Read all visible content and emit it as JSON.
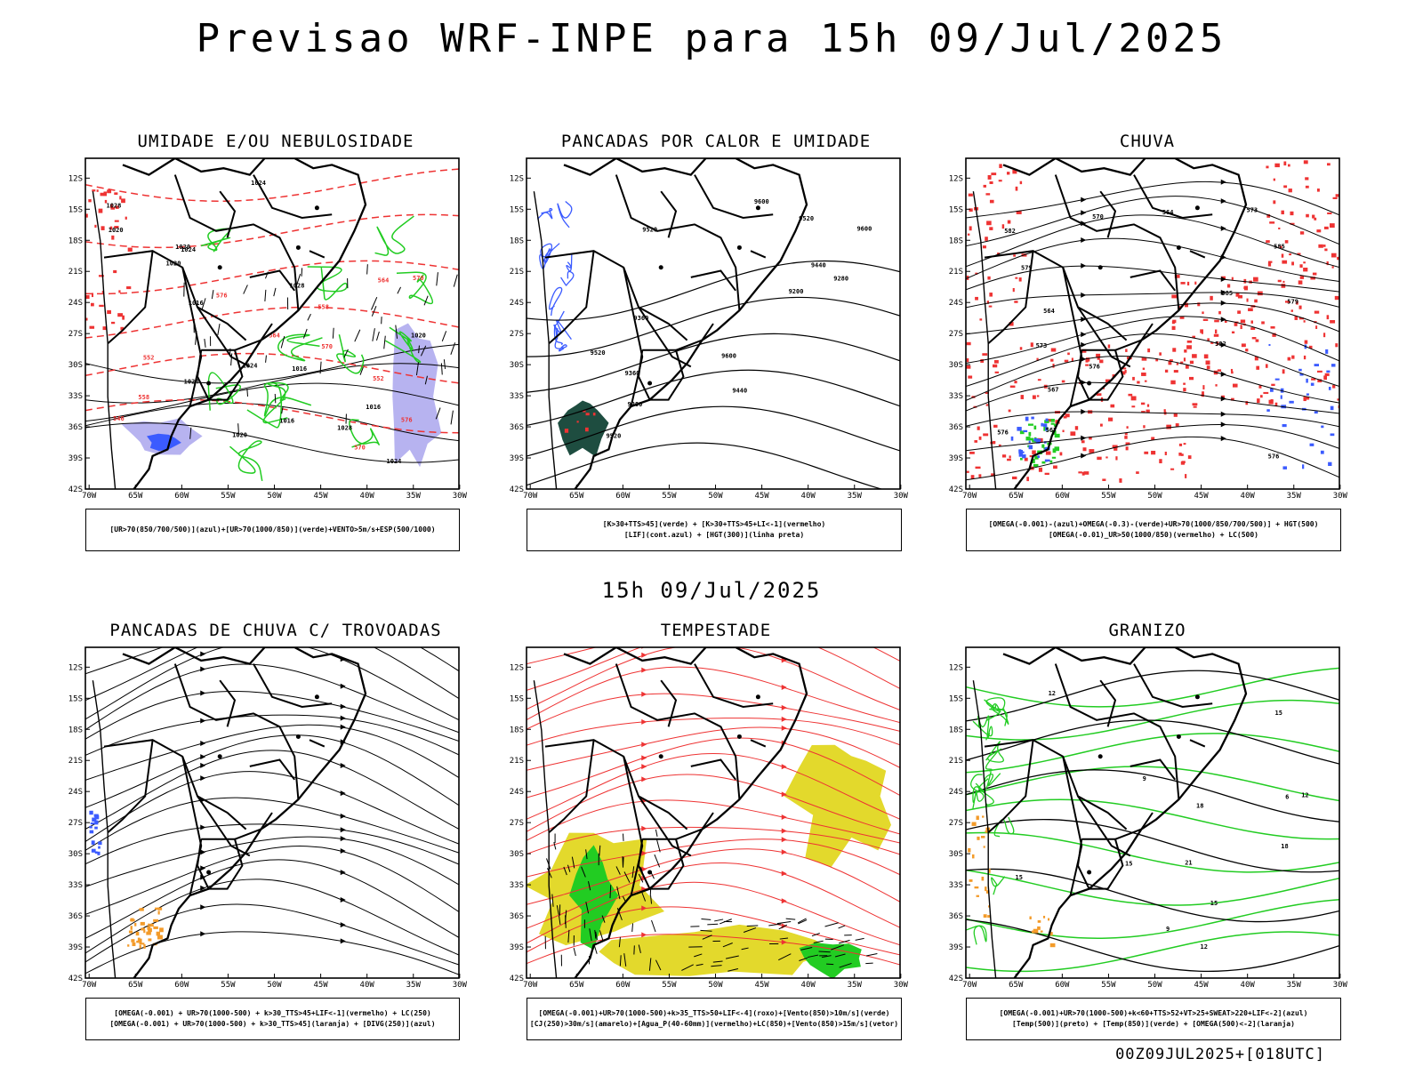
{
  "title": "Previsao WRF-INPE  para 15h 09/Jul/2025",
  "subtitle": "15h 09/Jul/2025",
  "footer": "00Z09JUL2025+[018UTC]",
  "lat_labels": [
    "12S",
    "15S",
    "18S",
    "21S",
    "24S",
    "27S",
    "30S",
    "33S",
    "36S",
    "39S",
    "42S"
  ],
  "lon_labels": [
    "70W",
    "65W",
    "60W",
    "55W",
    "50W",
    "45W",
    "40W",
    "35W",
    "30W"
  ],
  "colors": {
    "blue": "#3b5bff",
    "green": "#22cc22",
    "red": "#ee3333",
    "yellow": "#e3d92c",
    "orange": "#f39b2a",
    "lavender": "#b7b3f0",
    "darkgreen": "#1e4d40"
  },
  "panels": [
    {
      "title": "UMIDADE E/OU NEBULOSIDADE",
      "legend": [
        "[UR>70(850/700/500)](azul)+[UR>70(1000/850)](verde)+VENTO>5m/s+ESP(500/1000)"
      ],
      "contour_labels": [
        "1016",
        "1016",
        "1016",
        "1020",
        "1020",
        "1020",
        "1020",
        "1024",
        "1024",
        "1024",
        "1024",
        "1028",
        "1028",
        "1028",
        "1020",
        "1016",
        "1024",
        "576",
        "570",
        "564",
        "558",
        "552",
        "546",
        "552",
        "558",
        "564",
        "570",
        "570",
        "576"
      ]
    },
    {
      "title": "PANCADAS POR CALOR E UMIDADE",
      "legend": [
        "[K>30+TTS>45](verde) + [K>30+TTS>45+LI<-1](vermelho)",
        "[LIF](cont.azul) + [HGT(300)](linha preta)"
      ],
      "contour_labels": [
        "9600",
        "9600",
        "9600",
        "9520",
        "9520",
        "9520",
        "9440",
        "9440",
        "9360",
        "9360",
        "9280",
        "9280",
        "9200",
        "9520"
      ]
    },
    {
      "title": "CHUVA",
      "legend": [
        "[OMEGA(-0.001)-(azul)+OMEGA(-0.3)-(verde)+UR>70(1000/850/700/500)] + HGT(500)",
        "[OMEGA(-0.01)_UR>50(1000/850)(vermelho) + LC(500)"
      ],
      "contour_labels": [
        "585",
        "582",
        "582",
        "579",
        "579",
        "576",
        "576",
        "573",
        "573",
        "570",
        "567",
        "567",
        "564",
        "564",
        "576",
        "585"
      ]
    },
    {
      "title": "PANCADAS DE CHUVA C/ TROVOADAS",
      "legend": [
        "[OMEGA(-0.001) + UR>70(1000-500) + k>30_TTS>45+LIF<-1](vermelho) + LC(250)",
        "[OMEGA(-0.001) + UR>70(1000-500) + k>30_TTS>45](laranja) + [DIVG(250)](azul)"
      ],
      "contour_labels": []
    },
    {
      "title": "TEMPESTADE",
      "legend": [
        "[OMEGA(-0.001)+UR>70(1000-500)+k>35_TTS>50+LIF<-4](roxo)+[Vento(850)>10m/s](verde)",
        "[CJ(250)>30m/s](amarelo)+[Agua_P(40-60mm)](vermelho)+LC(850)+[Vento(850)>15m/s](vetor)"
      ],
      "contour_labels": []
    },
    {
      "title": "GRANIZO",
      "legend": [
        "[OMEGA(-0.001)+UR>70(1000-500)+k<60+TTS>52+VT>25+SWEAT>220+LIF<-2](azul)",
        "[Temp(500)](preto) + [Temp(850)](verde) + [OMEGA(500)<-2](laranja)"
      ],
      "contour_labels": [
        "6",
        "9",
        "12",
        "12",
        "15",
        "15",
        "18",
        "15",
        "21",
        "12",
        "15",
        "18",
        "9"
      ]
    }
  ]
}
